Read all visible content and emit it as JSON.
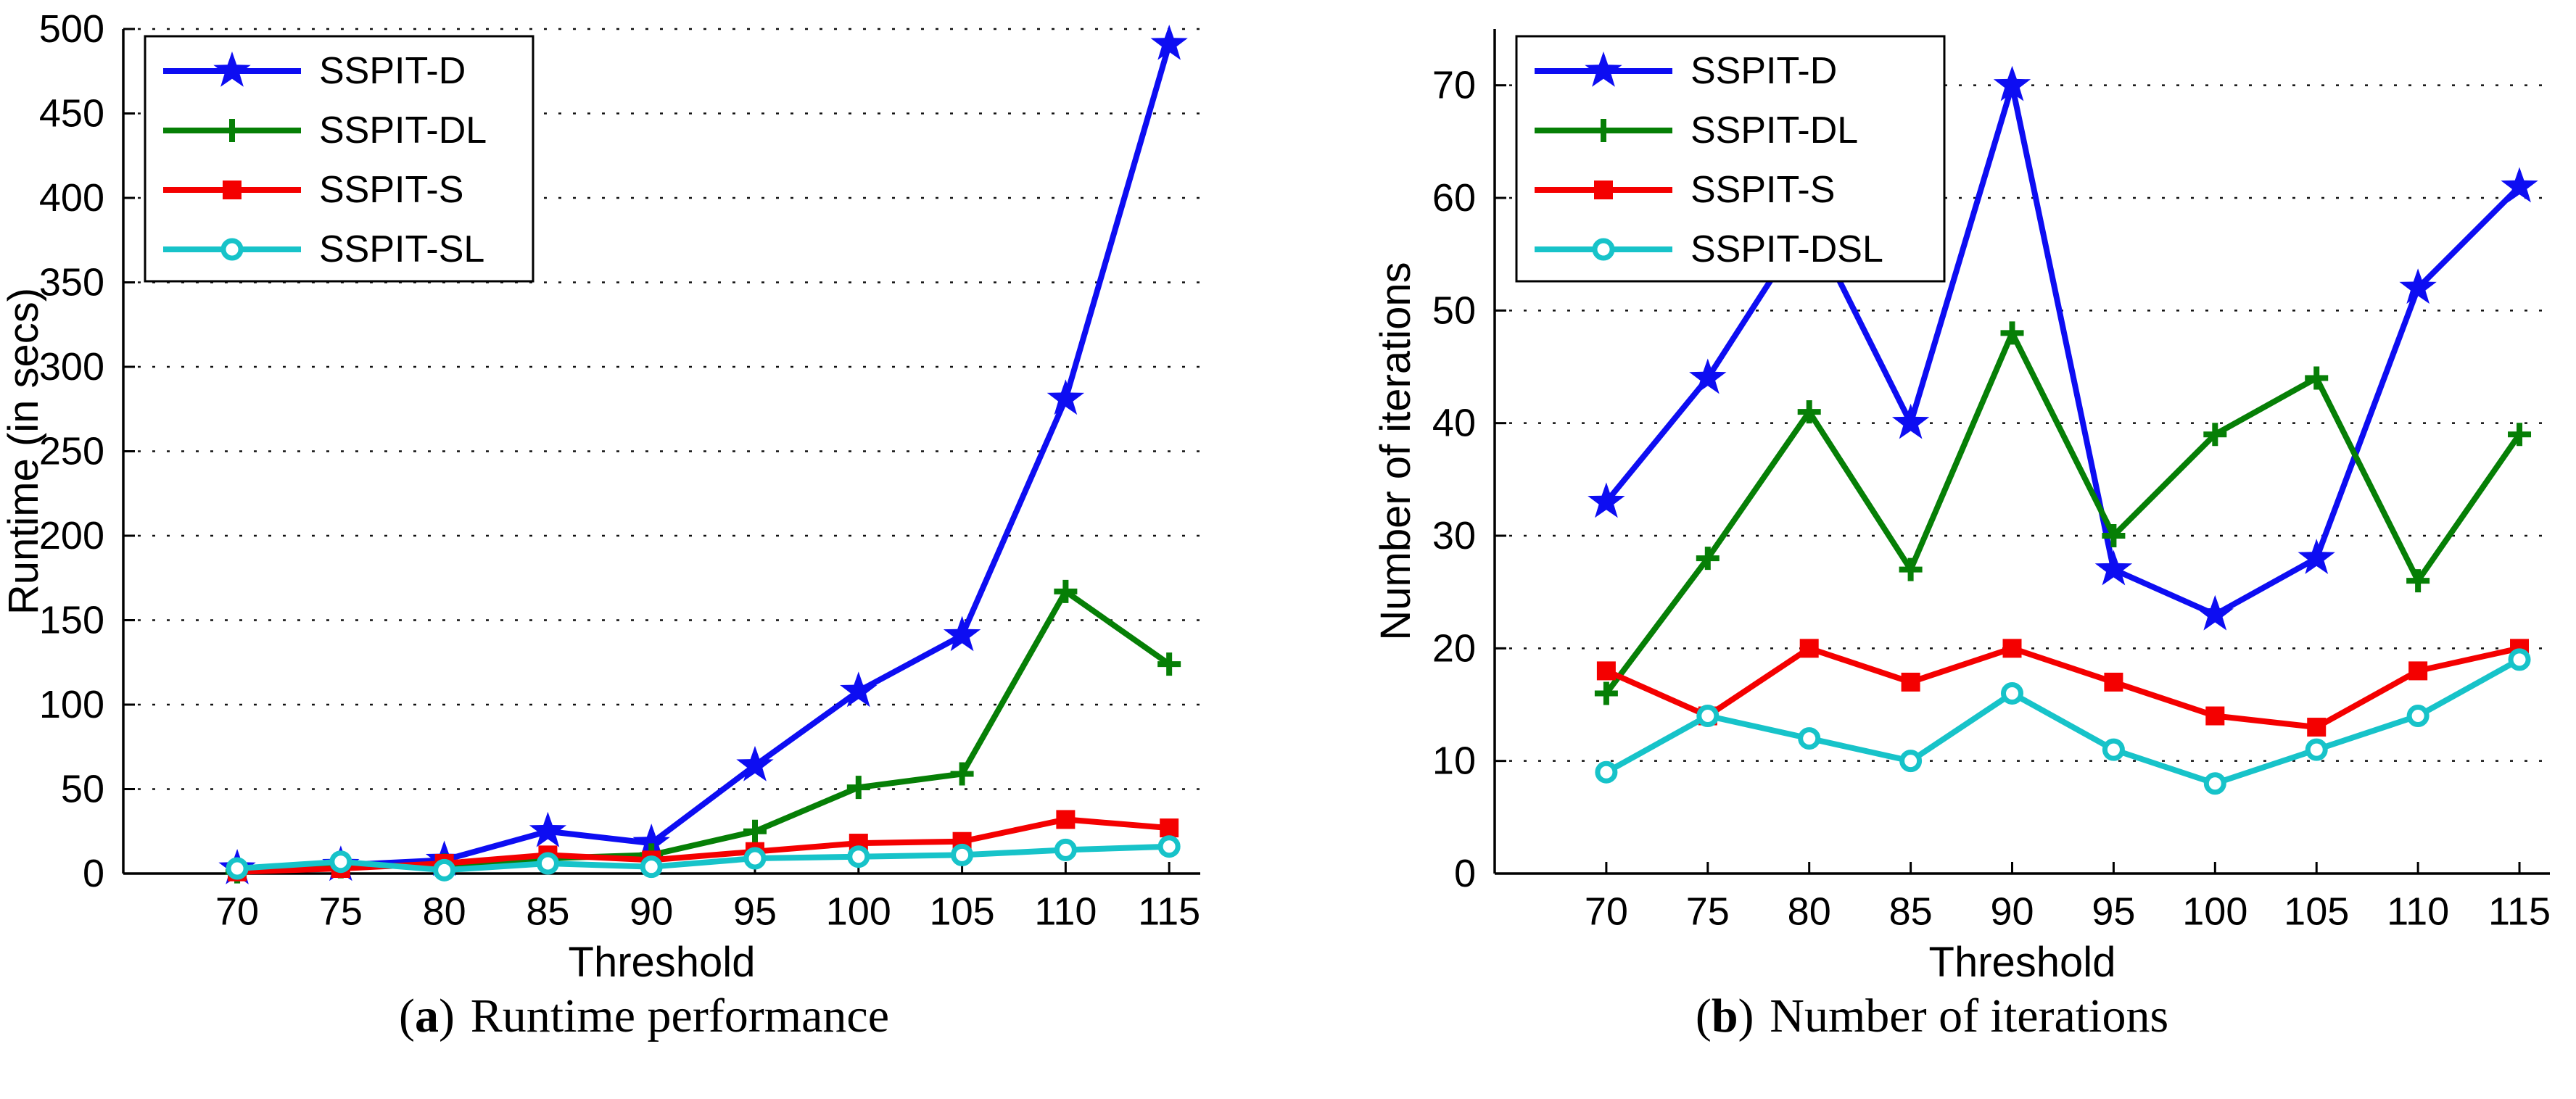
{
  "figure_title": "",
  "captions": {
    "a": {
      "open": "(",
      "letter": "a",
      "close": ")",
      "text": "Runtime performance"
    },
    "b": {
      "open": "(",
      "letter": "b",
      "close": ")",
      "text": "Number of iterations"
    }
  },
  "chart_data": [
    {
      "type": "line",
      "title": "",
      "xlabel": "Threshold",
      "ylabel": "Runtime (in secs)",
      "x": [
        70,
        75,
        80,
        85,
        90,
        95,
        100,
        105,
        110,
        115
      ],
      "xticks": [
        70,
        75,
        80,
        85,
        90,
        95,
        100,
        105,
        110,
        115
      ],
      "xlim": [
        64.5,
        116.5
      ],
      "ylim": [
        0,
        500
      ],
      "yticks": [
        0,
        50,
        100,
        150,
        200,
        250,
        300,
        350,
        400,
        450,
        500
      ],
      "grid": "horizontal-dotted",
      "legend_position": "top-left",
      "series": [
        {
          "name": "SSPIT-D",
          "color": "#0d0df2",
          "marker": "star",
          "values": [
            3,
            5,
            8,
            25,
            18,
            64,
            108,
            141,
            281,
            491
          ]
        },
        {
          "name": "SSPIT-DL",
          "color": "#067f06",
          "marker": "plus",
          "values": [
            1,
            4,
            5,
            9,
            11,
            25,
            51,
            59,
            167,
            124
          ]
        },
        {
          "name": "SSPIT-S",
          "color": "#f40000",
          "marker": "square",
          "values": [
            1,
            3,
            6,
            11,
            8,
            13,
            18,
            19,
            32,
            27
          ]
        },
        {
          "name": "SSPIT-SL",
          "color": "#17c3c9",
          "marker": "circle",
          "values": [
            3,
            7,
            2,
            6,
            4,
            9,
            10,
            11,
            14,
            16
          ]
        }
      ]
    },
    {
      "type": "line",
      "title": "",
      "xlabel": "Threshold",
      "ylabel": "Number of iterations",
      "x": [
        70,
        75,
        80,
        85,
        90,
        95,
        100,
        105,
        110,
        115
      ],
      "xticks": [
        70,
        75,
        80,
        85,
        90,
        95,
        100,
        105,
        110,
        115
      ],
      "xlim": [
        64.5,
        116.5
      ],
      "ylim": [
        0,
        75
      ],
      "yticks": [
        0,
        10,
        20,
        30,
        40,
        50,
        60,
        70
      ],
      "grid": "horizontal-dotted",
      "legend_position": "top-left",
      "series": [
        {
          "name": "SSPIT-D",
          "color": "#0d0df2",
          "marker": "star",
          "values": [
            33,
            44,
            58,
            40,
            70,
            27,
            23,
            28,
            52,
            61
          ]
        },
        {
          "name": "SSPIT-DL",
          "color": "#067f06",
          "marker": "plus",
          "values": [
            16,
            28,
            41,
            27,
            48,
            30,
            39,
            44,
            26,
            39
          ]
        },
        {
          "name": "SSPIT-S",
          "color": "#f40000",
          "marker": "square",
          "values": [
            18,
            14,
            20,
            17,
            20,
            17,
            14,
            13,
            18,
            20
          ]
        },
        {
          "name": "SSPIT-DSL",
          "color": "#17c3c9",
          "marker": "circle",
          "values": [
            9,
            14,
            12,
            10,
            16,
            11,
            8,
            11,
            14,
            19
          ]
        }
      ]
    }
  ]
}
